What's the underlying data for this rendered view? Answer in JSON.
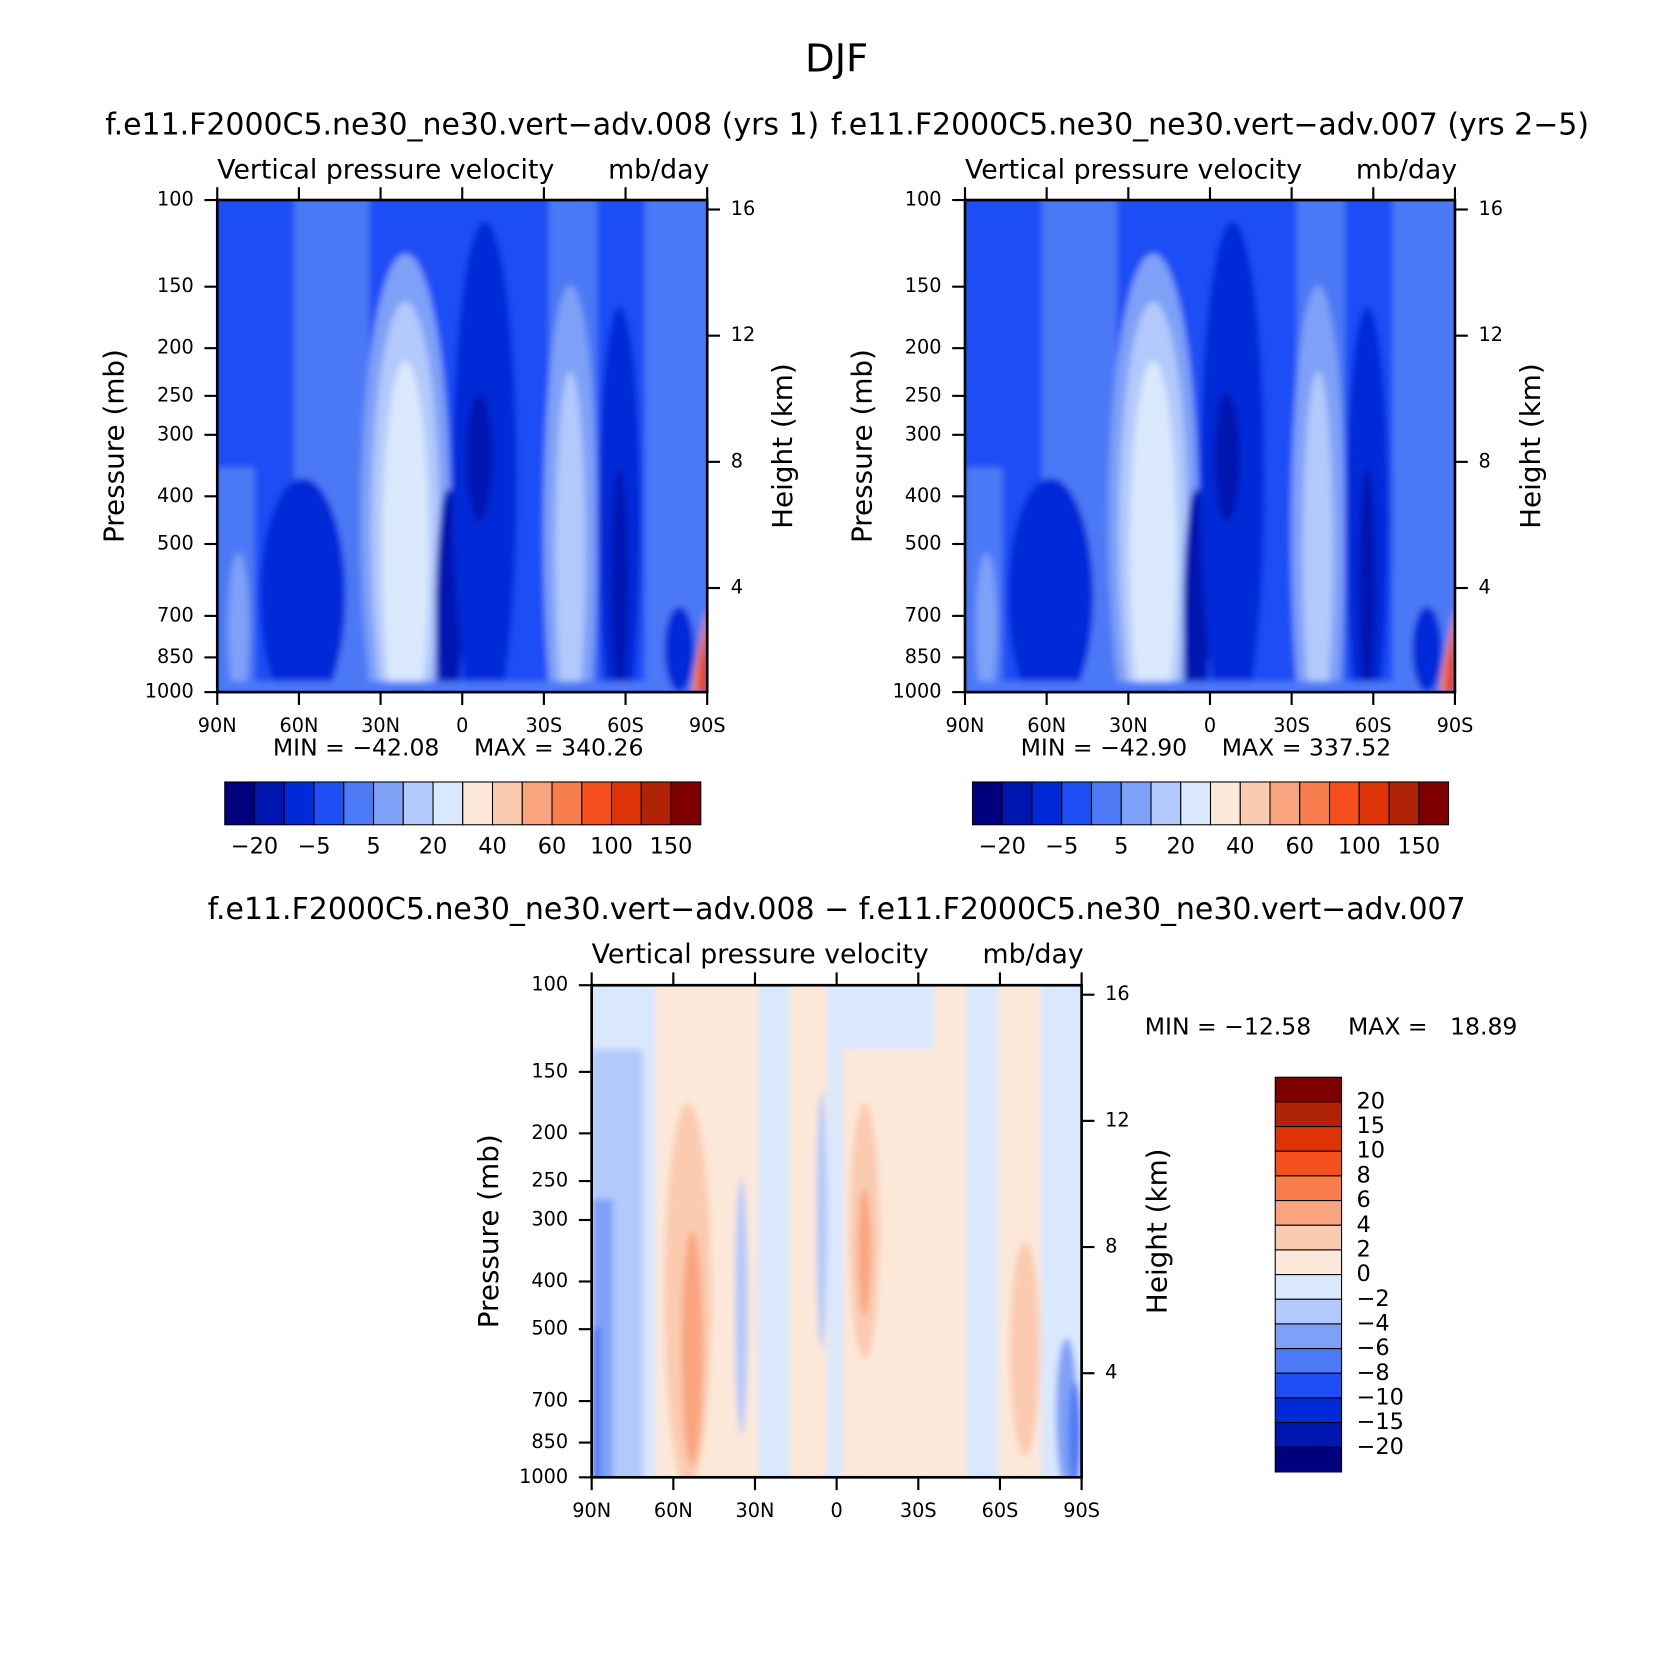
{
  "title": "DJF",
  "chart_data": [
    {
      "type": "contour",
      "title": "f.e11.F2000C5.ne30_ne30.vert−adv.008 (yrs 1)",
      "subtitle": "Vertical pressure velocity",
      "units": "mb/day",
      "ylabel": "Pressure (mb)",
      "y2label": "Height (km)",
      "log_y": true,
      "ylim": [
        1000,
        100
      ],
      "yticks": [
        100,
        150,
        200,
        250,
        300,
        400,
        500,
        700,
        850,
        1000
      ],
      "xlim": [
        90,
        -90
      ],
      "xticks": [
        {
          "value": 90,
          "label": "90N"
        },
        {
          "value": 60,
          "label": "60N"
        },
        {
          "value": 30,
          "label": "30N"
        },
        0,
        {
          "value": -30,
          "label": "30S"
        },
        {
          "value": -60,
          "label": "60S"
        },
        {
          "value": -90,
          "label": "90S"
        }
      ],
      "y2lim": [
        0.7,
        16.3
      ],
      "y2ticks": [
        16,
        12,
        8,
        4
      ],
      "min_label": "MIN = −42.08",
      "max_label": "MAX = 340.26",
      "colorbar": {
        "orientation": "horizontal",
        "colors": [
          "#00007f",
          "#0016b0",
          "#002ad8",
          "#1f4ef5",
          "#4c79f5",
          "#7ea0f7",
          "#b2c9fb",
          "#d9e8fd",
          "#fce8d8",
          "#fbcbb0",
          "#f9a47e",
          "#f77c4e",
          "#f64f1e",
          "#dd3306",
          "#b02306",
          "#7e0000"
        ],
        "labels": [
          "−20",
          "−5",
          "5",
          "20",
          "40",
          "60",
          "100",
          "150"
        ]
      }
    },
    {
      "type": "contour",
      "title": "f.e11.F2000C5.ne30_ne30.vert−adv.007 (yrs 2−5)",
      "subtitle": "Vertical pressure velocity",
      "units": "mb/day",
      "ylabel": "Pressure (mb)",
      "y2label": "Height (km)",
      "log_y": true,
      "ylim": [
        1000,
        100
      ],
      "yticks": [
        100,
        150,
        200,
        250,
        300,
        400,
        500,
        700,
        850,
        1000
      ],
      "xlim": [
        90,
        -90
      ],
      "xticks": [
        {
          "value": 90,
          "label": "90N"
        },
        {
          "value": 60,
          "label": "60N"
        },
        {
          "value": 30,
          "label": "30N"
        },
        0,
        {
          "value": -30,
          "label": "30S"
        },
        {
          "value": -60,
          "label": "60S"
        },
        {
          "value": -90,
          "label": "90S"
        }
      ],
      "y2lim": [
        0.7,
        16.3
      ],
      "y2ticks": [
        16,
        12,
        8,
        4
      ],
      "min_label": "MIN = −42.90",
      "max_label": "MAX = 337.52",
      "colorbar": {
        "orientation": "horizontal",
        "colors": [
          "#00007f",
          "#0016b0",
          "#002ad8",
          "#1f4ef5",
          "#4c79f5",
          "#7ea0f7",
          "#b2c9fb",
          "#d9e8fd",
          "#fce8d8",
          "#fbcbb0",
          "#f9a47e",
          "#f77c4e",
          "#f64f1e",
          "#dd3306",
          "#b02306",
          "#7e0000"
        ],
        "labels": [
          "−20",
          "−5",
          "5",
          "20",
          "40",
          "60",
          "100",
          "150"
        ]
      }
    },
    {
      "type": "contour",
      "title": "f.e11.F2000C5.ne30_ne30.vert−adv.008 − f.e11.F2000C5.ne30_ne30.vert−adv.007",
      "subtitle": "Vertical pressure velocity",
      "units": "mb/day",
      "ylabel": "Pressure (mb)",
      "y2label": "Height (km)",
      "log_y": true,
      "ylim": [
        1000,
        100
      ],
      "yticks": [
        100,
        150,
        200,
        250,
        300,
        400,
        500,
        700,
        850,
        1000
      ],
      "xlim": [
        90,
        -90
      ],
      "xticks": [
        {
          "value": 90,
          "label": "90N"
        },
        {
          "value": 60,
          "label": "60N"
        },
        {
          "value": 30,
          "label": "30N"
        },
        0,
        {
          "value": -30,
          "label": "30S"
        },
        {
          "value": -60,
          "label": "60S"
        },
        {
          "value": -90,
          "label": "90S"
        }
      ],
      "y2lim": [
        0.7,
        16.3
      ],
      "y2ticks": [
        16,
        12,
        8,
        4
      ],
      "min_label": "MIN = −12.58",
      "max_label": "MAX =   18.89",
      "colorbar": {
        "orientation": "vertical",
        "colors": [
          "#7e0000",
          "#b02306",
          "#dd3306",
          "#f64f1e",
          "#f77c4e",
          "#f9a47e",
          "#fbcbb0",
          "#fce8d8",
          "#d9e8fd",
          "#b2c9fb",
          "#7ea0f7",
          "#4c79f5",
          "#1f4ef5",
          "#002ad8",
          "#0016b0",
          "#00007f"
        ],
        "labels": [
          "20",
          "15",
          "10",
          "8",
          "6",
          "4",
          "2",
          "0",
          "−2",
          "−4",
          "−6",
          "−8",
          "−10",
          "−15",
          "−20"
        ]
      }
    }
  ]
}
